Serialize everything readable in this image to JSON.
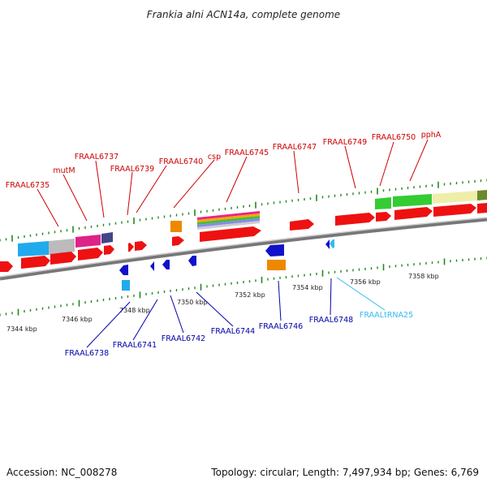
{
  "title": "Frankia alni ACN14a, complete genome",
  "footer": {
    "accession": "Accession: NC_008278",
    "summary": "Topology: circular; Length: 7,497,934 bp; Genes: 6,769"
  },
  "colors": {
    "forward_label": "#cc0000",
    "reverse_label": "#0000aa",
    "trna_label": "#33bbee",
    "cds_forward": "#ee1111",
    "cds_reverse": "#1111cc",
    "backbone": "#888888",
    "tick": "#228822"
  },
  "scale_ticks": [
    {
      "label": "7344 kbp"
    },
    {
      "label": "7346 kbp"
    },
    {
      "label": "7348 kbp"
    },
    {
      "label": "7350 kbp"
    },
    {
      "label": "7352 kbp"
    },
    {
      "label": "7354 kbp"
    },
    {
      "label": "7356 kbp"
    },
    {
      "label": "7358 kbp"
    }
  ],
  "forward_genes": [
    {
      "label": "FRAAL6735"
    },
    {
      "label": "mutM"
    },
    {
      "label": "FRAAL6737"
    },
    {
      "label": "FRAAL6739"
    },
    {
      "label": "FRAAL6740"
    },
    {
      "label": "csp"
    },
    {
      "label": "FRAAL6745"
    },
    {
      "label": "FRAAL6747"
    },
    {
      "label": "FRAAL6749"
    },
    {
      "label": "FRAAL6750"
    },
    {
      "label": "pphA"
    }
  ],
  "reverse_genes": [
    {
      "label": "FRAAL6738"
    },
    {
      "label": "FRAAL6741"
    },
    {
      "label": "FRAAL6742"
    },
    {
      "label": "FRAAL6744"
    },
    {
      "label": "FRAAL6746"
    },
    {
      "label": "FRAAL6748"
    },
    {
      "label": "FRAALtRNA25"
    }
  ]
}
